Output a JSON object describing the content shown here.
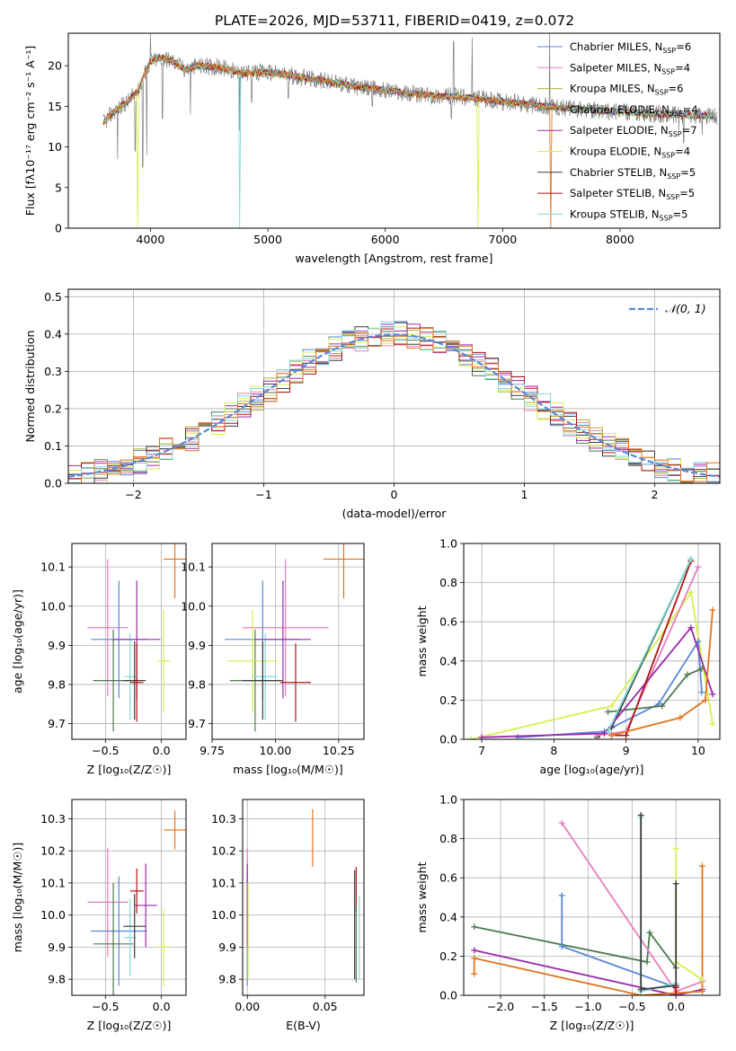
{
  "figure": {
    "title": "PLATE=2026, MJD=53711, FIBERID=0419, z=0.072"
  },
  "colors": {
    "Chabrier MILES": "#5b87d9",
    "Salpeter MILES": "#e77fbd",
    "Kroupa MILES": "#b1b13a",
    "Chabrier ELODIE": "#4e7a4e",
    "Salpeter ELODIE": "#9a2aab",
    "Kroupa ELODIE": "#d6f04c",
    "Chabrier STELIB": "#3d3d3d",
    "Salpeter STELIB": "#b11414",
    "Kroupa STELIB": "#7fd9d9",
    "orange": "#e3741b",
    "data": "#808080",
    "grid": "#b0b0b0",
    "normal": "#5b87d9"
  },
  "chart_data": [
    {
      "id": "spectrum",
      "type": "line",
      "title": "PLATE=2026, MJD=53711, FIBERID=0419, z=0.072",
      "xlabel": "wavelength [Angstrom, rest frame]",
      "ylabel": "Flux [fλ10⁻¹⁷ erg cm⁻² s⁻¹ A⁻¹]",
      "xlim": [
        3300,
        8850
      ],
      "ylim": [
        0,
        24
      ],
      "xticks": [
        4000,
        5000,
        6000,
        7000,
        8000
      ],
      "yticks": [
        0,
        5,
        10,
        15,
        20
      ],
      "grid": false,
      "legend_position": "top-right",
      "legend": [
        {
          "name": "Chabrier MILES, N_SSP=6",
          "label": "Chabrier MILES, N",
          "sub": "SSP",
          "tail": "=6",
          "color_key": "Chabrier MILES"
        },
        {
          "name": "Salpeter MILES, N_SSP=4",
          "label": "Salpeter MILES, N",
          "sub": "SSP",
          "tail": "=4",
          "color_key": "Salpeter MILES"
        },
        {
          "name": "Kroupa MILES, N_SSP=6",
          "label": "Kroupa MILES, N",
          "sub": "SSP",
          "tail": "=6",
          "color_key": "Kroupa MILES"
        },
        {
          "name": "Chabrier ELODIE, N_SSP=4",
          "label": "Chabrier ELODIE, N",
          "sub": "SSP",
          "tail": "=4",
          "color_key": "Chabrier ELODIE"
        },
        {
          "name": "Salpeter ELODIE, N_SSP=7",
          "label": "Salpeter ELODIE, N",
          "sub": "SSP",
          "tail": "=7",
          "color_key": "Salpeter ELODIE"
        },
        {
          "name": "Kroupa ELODIE, N_SSP=4",
          "label": "Kroupa ELODIE, N",
          "sub": "SSP",
          "tail": "=4",
          "color_key": "Kroupa ELODIE"
        },
        {
          "name": "Chabrier STELIB, N_SSP=5",
          "label": "Chabrier STELIB, N",
          "sub": "SSP",
          "tail": "=5",
          "color_key": "Chabrier STELIB"
        },
        {
          "name": "Salpeter STELIB, N_SSP=5",
          "label": "Salpeter STELIB, N",
          "sub": "SSP",
          "tail": "=5",
          "color_key": "Salpeter STELIB"
        },
        {
          "name": "Kroupa STELIB, N_SSP=5",
          "label": "Kroupa STELIB, N",
          "sub": "SSP",
          "tail": "=5",
          "color_key": "Kroupa STELIB"
        }
      ],
      "continuum": {
        "x": [
          3600,
          3700,
          3800,
          3900,
          3950,
          4000,
          4100,
          4200,
          4300,
          4400,
          4600,
          4800,
          5000,
          5200,
          5400,
          5600,
          5800,
          6000,
          6200,
          6400,
          6600,
          6800,
          7000,
          7200,
          7400,
          7600,
          7800,
          8000,
          8200,
          8400,
          8600,
          8800
        ],
        "y": [
          13.0,
          14.5,
          15.5,
          17.0,
          19.0,
          20.5,
          21.0,
          20.5,
          19.5,
          20.0,
          19.8,
          19.0,
          19.2,
          18.8,
          18.3,
          17.8,
          17.3,
          17.0,
          16.6,
          16.3,
          16.2,
          15.9,
          15.6,
          15.3,
          15.0,
          14.7,
          14.5,
          14.3,
          14.1,
          14.0,
          13.9,
          13.8
        ]
      },
      "data_spikes": [
        {
          "x": 3720,
          "y": 8.5
        },
        {
          "x": 3870,
          "y": 9.5
        },
        {
          "x": 3933,
          "y": 7.5
        },
        {
          "x": 3968,
          "y": 9.0
        },
        {
          "x": 4102,
          "y": 13.5
        },
        {
          "x": 4340,
          "y": 14.0
        },
        {
          "x": 4861,
          "y": 15.5
        },
        {
          "x": 5175,
          "y": 16.0
        },
        {
          "x": 5890,
          "y": 15.0
        },
        {
          "x": 6563,
          "y": 13.5
        },
        {
          "x": 6583,
          "y": 23.0
        },
        {
          "x": 6740,
          "y": 23.5
        },
        {
          "x": 7050,
          "y": 15.0
        },
        {
          "x": 7400,
          "y": 24.0
        },
        {
          "x": 8500,
          "y": 12.0
        },
        {
          "x": 8700,
          "y": 11.5
        },
        {
          "x": 4760,
          "y": 12.0
        },
        {
          "x": 4000,
          "y": 24.0
        },
        {
          "x": 8542,
          "y": 10.5
        }
      ],
      "model_dips": [
        {
          "x": 3890,
          "y": 0,
          "color_key": "Kroupa ELODIE"
        },
        {
          "x": 4760,
          "y": 0,
          "color_key": "Kroupa STELIB"
        },
        {
          "x": 6790,
          "y": 0,
          "color_key": "Kroupa ELODIE"
        },
        {
          "x": 7410,
          "y": 0,
          "color_key": "orange"
        }
      ]
    },
    {
      "id": "residuals",
      "type": "histogram",
      "xlabel": "(data-model)/error",
      "ylabel": "Normed distribution",
      "xlim": [
        -2.5,
        2.5
      ],
      "ylim": [
        0,
        0.52
      ],
      "xticks": [
        -2,
        -1,
        0,
        1,
        2
      ],
      "xtick_labels": [
        "−2",
        "−1",
        "0",
        "1",
        "2"
      ],
      "yticks": [
        0.0,
        0.1,
        0.2,
        0.3,
        0.4,
        0.5
      ],
      "grid": true,
      "legend_position": "top-right",
      "legend": [
        {
          "label": "𝒩(0, 1)",
          "color_key": "normal"
        }
      ],
      "bin_width": 0.1,
      "bin_start": -2.5,
      "series": [
        {
          "name": "Chabrier MILES",
          "color_key": "Chabrier MILES",
          "seed": 1
        },
        {
          "name": "Salpeter MILES",
          "color_key": "Salpeter MILES",
          "seed": 2
        },
        {
          "name": "Kroupa MILES",
          "color_key": "Kroupa MILES",
          "seed": 3
        },
        {
          "name": "Chabrier ELODIE",
          "color_key": "Chabrier ELODIE",
          "seed": 4
        },
        {
          "name": "Salpeter ELODIE",
          "color_key": "Salpeter ELODIE",
          "seed": 5
        },
        {
          "name": "Kroupa ELODIE",
          "color_key": "Kroupa ELODIE",
          "seed": 6
        },
        {
          "name": "Chabrier STELIB",
          "color_key": "Chabrier STELIB",
          "seed": 7
        },
        {
          "name": "Salpeter STELIB",
          "color_key": "Salpeter STELIB",
          "seed": 8
        },
        {
          "name": "Kroupa STELIB",
          "color_key": "Kroupa STELIB",
          "seed": 9
        },
        {
          "name": "orange",
          "color_key": "orange",
          "seed": 10
        }
      ]
    },
    {
      "id": "z-vs-age",
      "type": "errorbar",
      "xlabel": "Z [log₁₀(Z/Z☉)]",
      "ylabel": "age  [log₁₀(age/yr)]",
      "xlim": [
        -0.8,
        0.22
      ],
      "ylim": [
        9.66,
        10.16
      ],
      "xticks": [
        -0.5,
        0.0
      ],
      "xtick_labels": [
        "−0.5",
        "0.0"
      ],
      "yticks": [
        9.7,
        9.8,
        9.9,
        10.0,
        10.1
      ],
      "grid": true,
      "points": [
        {
          "c": "Salpeter MILES",
          "x": -0.48,
          "xerr": 0.18,
          "y": 9.945,
          "yerr": 0.175
        },
        {
          "c": "Chabrier MILES",
          "x": -0.38,
          "xerr": 0.25,
          "y": 9.915,
          "yerr": 0.15
        },
        {
          "c": "Chabrier ELODIE",
          "x": -0.43,
          "xerr": 0.18,
          "y": 9.81,
          "yerr": 0.13
        },
        {
          "c": "Kroupa STELIB",
          "x": -0.28,
          "xerr": 0.05,
          "y": 9.82,
          "yerr": 0.11
        },
        {
          "c": "Salpeter ELODIE",
          "x": -0.22,
          "xerr": 0.21,
          "y": 9.915,
          "yerr": 0.15
        },
        {
          "c": "Chabrier STELIB",
          "x": -0.24,
          "xerr": 0.1,
          "y": 9.81,
          "yerr": 0.1
        },
        {
          "c": "Salpeter STELIB",
          "x": -0.22,
          "xerr": 0.06,
          "y": 9.805,
          "yerr": 0.1
        },
        {
          "c": "Kroupa ELODIE",
          "x": 0.02,
          "xerr": 0.06,
          "y": 9.86,
          "yerr": 0.13
        },
        {
          "c": "orange",
          "x": 0.12,
          "xerr": 0.1,
          "y": 10.12,
          "yerr": 0.1
        }
      ]
    },
    {
      "id": "mass-vs-age",
      "type": "errorbar",
      "xlabel": "mass [log₁₀(M/M☉)]",
      "ylabel": "",
      "xlim": [
        9.75,
        10.35
      ],
      "ylim": [
        9.66,
        10.16
      ],
      "xticks": [
        9.75,
        10.0,
        10.25
      ],
      "xtick_labels": [
        "9.75",
        "10.00",
        "10.25"
      ],
      "yticks": [
        9.7,
        9.8,
        9.9,
        10.0,
        10.1
      ],
      "grid": true,
      "points": [
        {
          "c": "Salpeter MILES",
          "x": 10.04,
          "xerr": 0.17,
          "y": 9.945,
          "yerr": 0.175
        },
        {
          "c": "Chabrier MILES",
          "x": 9.95,
          "xerr": 0.15,
          "y": 9.915,
          "yerr": 0.15
        },
        {
          "c": "Chabrier ELODIE",
          "x": 9.92,
          "xerr": 0.1,
          "y": 9.81,
          "yerr": 0.13
        },
        {
          "c": "Kroupa ELODIE",
          "x": 9.91,
          "xerr": 0.1,
          "y": 9.86,
          "yerr": 0.13
        },
        {
          "c": "Kroupa STELIB",
          "x": 9.96,
          "xerr": 0.05,
          "y": 9.82,
          "yerr": 0.11
        },
        {
          "c": "Salpeter ELODIE",
          "x": 10.03,
          "xerr": 0.11,
          "y": 9.915,
          "yerr": 0.15
        },
        {
          "c": "Chabrier STELIB",
          "x": 9.95,
          "xerr": 0.08,
          "y": 9.81,
          "yerr": 0.1
        },
        {
          "c": "Salpeter STELIB",
          "x": 10.08,
          "xerr": 0.06,
          "y": 9.805,
          "yerr": 0.1
        },
        {
          "c": "orange",
          "x": 10.27,
          "xerr": 0.08,
          "y": 10.12,
          "yerr": 0.1
        }
      ]
    },
    {
      "id": "age-vs-massweight",
      "type": "line",
      "xlabel": "age  [log₁₀(age/yr)]",
      "ylabel": "mass weight",
      "xlim": [
        6.75,
        10.3
      ],
      "ylim": [
        0,
        1
      ],
      "xticks": [
        7,
        8,
        9,
        10
      ],
      "yticks": [
        0.0,
        0.2,
        0.4,
        0.6,
        0.8,
        1.0
      ],
      "grid": true,
      "series": [
        {
          "c": "Kroupa ELODIE",
          "x": [
            6.85,
            8.8,
            9.9,
            10.2
          ],
          "y": [
            0.0,
            0.17,
            0.75,
            0.08
          ]
        },
        {
          "c": "Chabrier MILES",
          "x": [
            7.5,
            8.7,
            9.45,
            10.0,
            10.05
          ],
          "y": [
            0.01,
            0.04,
            0.18,
            0.5,
            0.24
          ]
        },
        {
          "c": "Chabrier ELODIE",
          "x": [
            8.75,
            9.5,
            9.85,
            10.05
          ],
          "y": [
            0.14,
            0.17,
            0.33,
            0.36
          ]
        },
        {
          "c": "Chabrier STELIB",
          "x": [
            8.6,
            8.8,
            9.9
          ],
          "y": [
            0.01,
            0.06,
            0.92
          ]
        },
        {
          "c": "Salpeter MILES",
          "x": [
            8.6,
            9.0,
            10.0
          ],
          "y": [
            0.02,
            0.04,
            0.88
          ]
        },
        {
          "c": "Salpeter ELODIE",
          "x": [
            7.0,
            8.7,
            9.9,
            10.2
          ],
          "y": [
            0.01,
            0.03,
            0.57,
            0.23
          ]
        },
        {
          "c": "Salpeter STELIB",
          "x": [
            8.8,
            9.0,
            9.9
          ],
          "y": [
            0.02,
            0.02,
            0.91
          ]
        },
        {
          "c": "Kroupa STELIB",
          "x": [
            8.75,
            9.9
          ],
          "y": [
            0.04,
            0.92
          ]
        },
        {
          "c": "orange",
          "x": [
            8.8,
            9.75,
            10.1,
            10.2
          ],
          "y": [
            0.02,
            0.11,
            0.2,
            0.66
          ]
        }
      ]
    },
    {
      "id": "z-vs-mass",
      "type": "errorbar",
      "xlabel": "Z [log₁₀(Z/Z☉)]",
      "ylabel": "mass [log₁₀(M/M☉)]",
      "xlim": [
        -0.8,
        0.22
      ],
      "ylim": [
        9.75,
        10.36
      ],
      "xticks": [
        -0.5,
        0.0
      ],
      "xtick_labels": [
        "−0.5",
        "0.0"
      ],
      "yticks": [
        9.8,
        9.9,
        10.0,
        10.1,
        10.2,
        10.3
      ],
      "grid": true,
      "points": [
        {
          "c": "Salpeter MILES",
          "x": -0.48,
          "xerr": 0.18,
          "y": 10.04,
          "yerr": 0.17
        },
        {
          "c": "Chabrier MILES",
          "x": -0.38,
          "xerr": 0.25,
          "y": 9.95,
          "yerr": 0.17
        },
        {
          "c": "Chabrier ELODIE",
          "x": -0.43,
          "xerr": 0.18,
          "y": 9.91,
          "yerr": 0.19
        },
        {
          "c": "Kroupa STELIB",
          "x": -0.28,
          "xerr": 0.05,
          "y": 9.93,
          "yerr": 0.12
        },
        {
          "c": "Salpeter ELODIE",
          "x": -0.14,
          "xerr": 0.1,
          "y": 10.03,
          "yerr": 0.13
        },
        {
          "c": "Chabrier STELIB",
          "x": -0.24,
          "xerr": 0.1,
          "y": 9.965,
          "yerr": 0.1
        },
        {
          "c": "Salpeter STELIB",
          "x": -0.22,
          "xerr": 0.06,
          "y": 10.075,
          "yerr": 0.07
        },
        {
          "c": "Kroupa ELODIE",
          "x": 0.02,
          "xerr": 0.06,
          "y": 9.9,
          "yerr": 0.12
        },
        {
          "c": "orange",
          "x": 0.12,
          "xerr": 0.1,
          "y": 10.265,
          "yerr": 0.06
        }
      ]
    },
    {
      "id": "ebv-vs-mass",
      "type": "errorbar",
      "xlabel": "E(B-V)",
      "ylabel": "",
      "xlim": [
        -0.003,
        0.075
      ],
      "ylim": [
        9.75,
        10.36
      ],
      "xticks": [
        0.0,
        0.05
      ],
      "xtick_labels": [
        "0.00",
        "0.05"
      ],
      "yticks": [
        9.8,
        9.9,
        10.0,
        10.1,
        10.2,
        10.3
      ],
      "grid": true,
      "points": [
        {
          "c": "Salpeter MILES",
          "x": 0.0,
          "xerr": 0,
          "y": 10.04,
          "yerr": 0.17
        },
        {
          "c": "Chabrier MILES",
          "x": 0.0,
          "xerr": 0,
          "y": 9.95,
          "yerr": 0.17
        },
        {
          "c": "Salpeter ELODIE",
          "x": 0.0,
          "xerr": 0,
          "y": 10.03,
          "yerr": 0.13
        },
        {
          "c": "Kroupa ELODIE",
          "x": 0.0005,
          "xerr": 0,
          "y": 9.95,
          "yerr": 0.15
        },
        {
          "c": "orange",
          "x": 0.042,
          "xerr": 0,
          "y": 10.24,
          "yerr": 0.09
        },
        {
          "c": "Chabrier STELIB",
          "x": 0.069,
          "xerr": 0,
          "y": 9.97,
          "yerr": 0.17
        },
        {
          "c": "Salpeter STELIB",
          "x": 0.07,
          "xerr": 0,
          "y": 10.08,
          "yerr": 0.07
        },
        {
          "c": "Chabrier ELODIE",
          "x": 0.07,
          "xerr": 0,
          "y": 9.91,
          "yerr": 0.12
        },
        {
          "c": "Kroupa STELIB",
          "x": 0.072,
          "xerr": 0,
          "y": 9.93,
          "yerr": 0.13
        }
      ]
    },
    {
      "id": "z-vs-massweight",
      "type": "line",
      "xlabel": "Z [log₁₀(Z/Z☉)]",
      "ylabel": "mass weight",
      "xlim": [
        -2.42,
        0.5
      ],
      "ylim": [
        0,
        1
      ],
      "xticks": [
        -2.0,
        -1.5,
        -1.0,
        -0.5,
        0.0
      ],
      "xtick_labels": [
        "−2.0",
        "−1.5",
        "−1.0",
        "−0.5",
        "0.0"
      ],
      "yticks": [
        0.0,
        0.2,
        0.4,
        0.6,
        0.8,
        1.0
      ],
      "grid": true,
      "series": [
        {
          "c": "Chabrier ELODIE",
          "x": [
            -2.3,
            -0.33,
            -0.3,
            0.0
          ],
          "y": [
            0.35,
            0.17,
            0.32,
            0.14
          ]
        },
        {
          "c": "Chabrier MILES",
          "x": [
            -1.3,
            -1.3,
            0.0,
            0.0
          ],
          "y": [
            0.51,
            0.25,
            0.04,
            0.0
          ]
        },
        {
          "c": "Salpeter MILES",
          "x": [
            -1.3,
            0.0,
            0.3
          ],
          "y": [
            0.88,
            0.02,
            0.07
          ]
        },
        {
          "c": "Salpeter ELODIE",
          "x": [
            -2.3,
            0.0,
            0.3
          ],
          "y": [
            0.23,
            0.0,
            0.03
          ]
        },
        {
          "c": "orange",
          "x": [
            -2.3,
            -2.3,
            -0.4,
            0.3,
            0.3
          ],
          "y": [
            0.11,
            0.19,
            0.0,
            0.02,
            0.66
          ]
        },
        {
          "c": "Kroupa ELODIE",
          "x": [
            0.0,
            0.0,
            0.3
          ],
          "y": [
            0.75,
            0.17,
            0.08
          ]
        },
        {
          "c": "Kroupa STELIB",
          "x": [
            -0.4,
            -0.4,
            0.0
          ],
          "y": [
            0.91,
            0.02,
            0.06
          ]
        },
        {
          "c": "Chabrier STELIB",
          "x": [
            -0.4,
            -0.4,
            0.0,
            0.0
          ],
          "y": [
            0.92,
            0.03,
            0.05,
            0.57
          ]
        },
        {
          "c": "Salpeter STELIB",
          "x": [
            0.0,
            0.0
          ],
          "y": [
            0.0,
            0.04
          ]
        }
      ]
    }
  ]
}
